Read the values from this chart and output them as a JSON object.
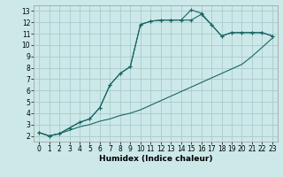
{
  "title": "",
  "xlabel": "Humidex (Indice chaleur)",
  "bg_color": "#cce8e8",
  "grid_color": "#aacccc",
  "line_color": "#1a6666",
  "xlim": [
    -0.5,
    23.5
  ],
  "ylim": [
    1.5,
    13.5
  ],
  "xticks": [
    0,
    1,
    2,
    3,
    4,
    5,
    6,
    7,
    8,
    9,
    10,
    11,
    12,
    13,
    14,
    15,
    16,
    17,
    18,
    19,
    20,
    21,
    22,
    23
  ],
  "yticks": [
    2,
    3,
    4,
    5,
    6,
    7,
    8,
    9,
    10,
    11,
    12,
    13
  ],
  "line1_x": [
    0,
    1,
    2,
    3,
    4,
    5,
    6,
    7,
    8,
    9,
    10,
    11,
    12,
    13,
    14,
    15,
    16,
    17,
    18,
    19,
    20,
    21,
    22,
    23
  ],
  "line1_y": [
    2.3,
    2.0,
    2.2,
    2.5,
    2.8,
    3.0,
    3.3,
    3.5,
    3.8,
    4.0,
    4.3,
    4.7,
    5.1,
    5.5,
    5.9,
    6.3,
    6.7,
    7.1,
    7.5,
    7.9,
    8.3,
    9.0,
    9.8,
    10.6
  ],
  "line2_x": [
    0,
    1,
    2,
    3,
    4,
    5,
    6,
    7,
    8,
    9,
    10,
    11,
    12,
    13,
    14,
    15,
    16,
    17,
    18,
    19,
    20,
    21,
    22,
    23
  ],
  "line2_y": [
    2.3,
    2.0,
    2.2,
    2.7,
    3.2,
    3.5,
    4.5,
    6.5,
    7.5,
    8.1,
    11.8,
    12.1,
    12.2,
    12.2,
    12.2,
    12.2,
    12.7,
    11.8,
    10.8,
    11.1,
    11.1,
    11.1,
    11.1,
    10.8
  ],
  "line3_x": [
    0,
    1,
    2,
    3,
    4,
    5,
    6,
    7,
    8,
    9,
    10,
    11,
    12,
    13,
    14,
    15,
    16,
    17,
    18,
    19,
    20,
    21,
    22,
    23
  ],
  "line3_y": [
    2.3,
    2.0,
    2.2,
    2.7,
    3.2,
    3.5,
    4.5,
    6.5,
    7.5,
    8.1,
    11.8,
    12.1,
    12.2,
    12.2,
    12.2,
    13.1,
    12.8,
    11.8,
    10.8,
    11.1,
    11.1,
    11.1,
    11.1,
    10.8
  ],
  "tick_fontsize": 5.5,
  "xlabel_fontsize": 6.5
}
